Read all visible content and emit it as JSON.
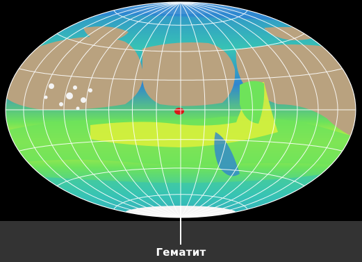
{
  "map": {
    "projection": "hammer-equal-area",
    "meridian_count": 17,
    "parallel_count": 7,
    "colors": {
      "background": "#000000",
      "caption_band": "#333333",
      "low_albedo_blue": "#2f86d0",
      "mid_cyan": "#37c3b4",
      "high_green": "#6ee35a",
      "peak_yellow": "#d8ef3c",
      "dust_tan": "#b9a27f",
      "polar_white": "#f4f4f4",
      "graticule": "#ffffff",
      "hematite_red": "#d81818"
    }
  },
  "annotation": {
    "label": "Гематит",
    "marker": "hematite-site-marker"
  }
}
